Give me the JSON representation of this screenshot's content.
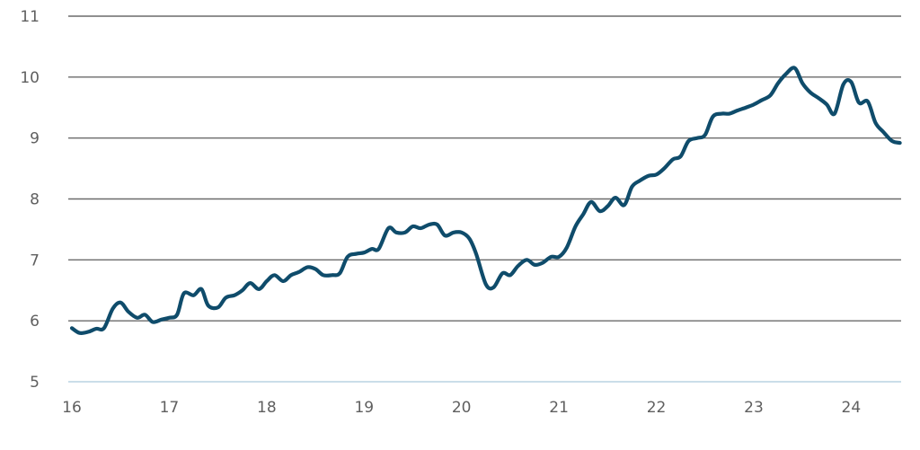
{
  "chart_data": {
    "type": "line",
    "title": "",
    "xlabel": "",
    "ylabel": "",
    "xlim": [
      16,
      24.55
    ],
    "ylim": [
      5,
      11
    ],
    "x_ticks": [
      {
        "value": 16,
        "label": "16"
      },
      {
        "value": 17,
        "label": "17"
      },
      {
        "value": 18,
        "label": "18"
      },
      {
        "value": 19,
        "label": "19"
      },
      {
        "value": 20,
        "label": "20"
      },
      {
        "value": 21,
        "label": "21"
      },
      {
        "value": 22,
        "label": "22"
      },
      {
        "value": 23,
        "label": "23"
      },
      {
        "value": 24,
        "label": "24"
      }
    ],
    "y_ticks": [
      {
        "value": 5,
        "label": "5"
      },
      {
        "value": 6,
        "label": "6"
      },
      {
        "value": 7,
        "label": "7"
      },
      {
        "value": 8,
        "label": "8"
      },
      {
        "value": 9,
        "label": "9"
      },
      {
        "value": 10,
        "label": "10"
      },
      {
        "value": 11,
        "label": "11"
      }
    ],
    "grid": true,
    "legend": "none",
    "colors": {
      "line": "#0f4c6b",
      "grid": "#6b6b6b",
      "baseline": "#b9d3e2",
      "text": "#5f5f5f"
    },
    "series": [
      {
        "x": [
          16.0,
          16.08,
          16.17,
          16.25,
          16.33,
          16.42,
          16.5,
          16.58,
          16.67,
          16.75,
          16.83,
          16.92,
          17.0,
          17.08,
          17.15,
          17.25,
          17.33,
          17.4,
          17.5,
          17.58,
          17.67,
          17.75,
          17.83,
          17.92,
          18.0,
          18.08,
          18.17,
          18.25,
          18.33,
          18.42,
          18.5,
          18.58,
          18.67,
          18.75,
          18.83,
          18.92,
          19.0,
          19.08,
          19.15,
          19.25,
          19.33,
          19.42,
          19.5,
          19.58,
          19.67,
          19.75,
          19.83,
          19.92,
          20.0,
          20.08,
          20.15,
          20.25,
          20.33,
          20.42,
          20.5,
          20.58,
          20.67,
          20.75,
          20.83,
          20.92,
          21.0,
          21.08,
          21.17,
          21.25,
          21.33,
          21.42,
          21.5,
          21.58,
          21.67,
          21.75,
          21.83,
          21.92,
          22.0,
          22.08,
          22.17,
          22.25,
          22.33,
          22.42,
          22.5,
          22.58,
          22.67,
          22.75,
          22.83,
          22.92,
          23.0,
          23.08,
          23.17,
          23.25,
          23.33,
          23.42,
          23.5,
          23.58,
          23.67,
          23.75,
          23.83,
          23.92,
          24.0,
          24.08,
          24.17,
          24.25,
          24.33,
          24.42,
          24.5
        ],
        "values": [
          5.88,
          5.8,
          5.82,
          5.87,
          5.88,
          6.2,
          6.3,
          6.15,
          6.05,
          6.1,
          5.98,
          6.02,
          6.05,
          6.1,
          6.45,
          6.42,
          6.52,
          6.25,
          6.22,
          6.38,
          6.42,
          6.5,
          6.62,
          6.52,
          6.65,
          6.75,
          6.65,
          6.75,
          6.8,
          6.88,
          6.85,
          6.75,
          6.75,
          6.78,
          7.05,
          7.1,
          7.12,
          7.18,
          7.18,
          7.52,
          7.45,
          7.45,
          7.55,
          7.52,
          7.58,
          7.58,
          7.4,
          7.45,
          7.45,
          7.35,
          7.1,
          6.6,
          6.55,
          6.78,
          6.75,
          6.9,
          7.0,
          6.92,
          6.95,
          7.05,
          7.05,
          7.2,
          7.55,
          7.75,
          7.95,
          7.8,
          7.88,
          8.02,
          7.9,
          8.2,
          8.3,
          8.38,
          8.4,
          8.5,
          8.65,
          8.7,
          8.95,
          9.0,
          9.05,
          9.35,
          9.4,
          9.4,
          9.45,
          9.5,
          9.55,
          9.62,
          9.7,
          9.9,
          10.05,
          10.15,
          9.9,
          9.75,
          9.65,
          9.55,
          9.4,
          9.88,
          9.92,
          9.58,
          9.6,
          9.25,
          9.1,
          8.95,
          8.92
        ]
      }
    ]
  }
}
